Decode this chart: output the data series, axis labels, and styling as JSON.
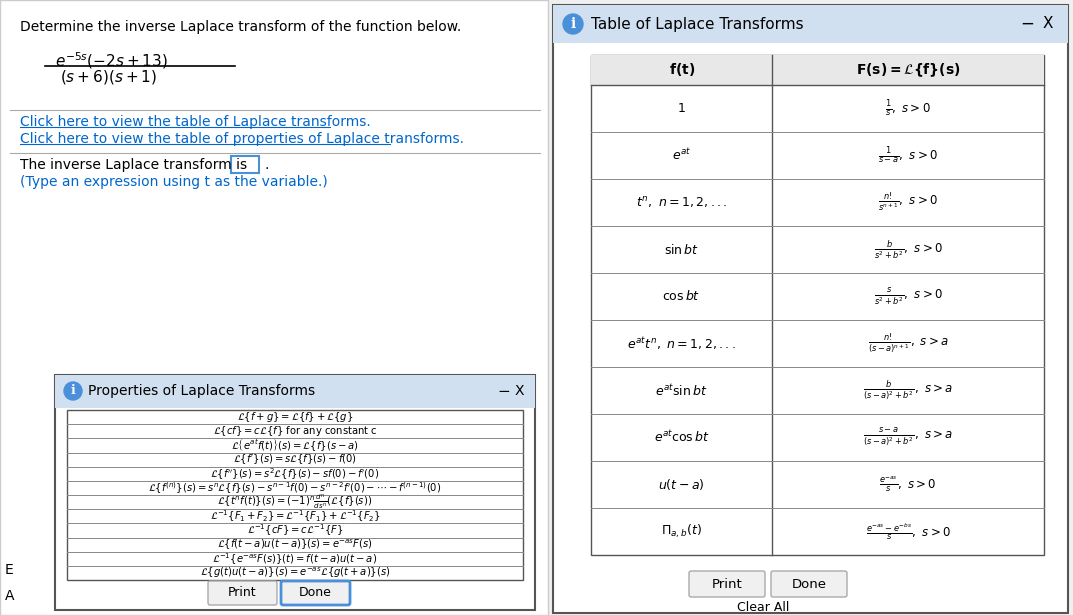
{
  "bg_color": "#f0f0f0",
  "main_bg": "#ffffff",
  "blue_header": "#d0e0f0",
  "blue_link": "#0066cc",
  "blue_info": "#4a90d9",
  "title_text": "Determine the inverse Laplace transform of the function below.",
  "inverse_text": "The inverse Laplace transform is",
  "type_hint": "(Type an expression using t as the variable.)",
  "link1": "Click here to view the table of Laplace transforms.",
  "link2": "Click here to view the table of properties of Laplace transforms.",
  "prop_title": "Properties of Laplace Transforms",
  "laplace_title": "Table of Laplace Transforms",
  "prop_rows": [
    "$\\mathcal{L}\\{f+g\\} = \\mathcal{L}\\{f\\} + \\mathcal{L}\\{g\\}$",
    "$\\mathcal{L}\\{cf\\} = c\\mathcal{L}\\{f\\}$ for any constant c",
    "$\\mathcal{L}\\left\\{e^{at}f(t)\\right\\}(s) = \\mathcal{L}\\{f\\}(s-a)$",
    "$\\mathcal{L}\\{f'\\}(s) = s\\mathcal{L}\\{f\\}(s) - f(0)$",
    "$\\mathcal{L}\\{f''\\}(s) = s^2\\mathcal{L}\\{f\\}(s) - sf(0) - f'(0)$",
    "$\\mathcal{L}\\{f^{(n)}\\}(s) = s^n\\mathcal{L}\\{f\\}(s) - s^{n-1}f(0) - s^{n-2}f'(0) - \\cdots - f^{(n-1)}(0)$",
    "$\\mathcal{L}\\{t^n f(t)\\}(s) = (-1)^n \\frac{d^n}{ds^n}(\\mathcal{L}\\{f\\}(s))$",
    "$\\mathcal{L}^{-1}\\{F_1 + F_2\\} = \\mathcal{L}^{-1}\\{F_1\\} + \\mathcal{L}^{-1}\\{F_2\\}$",
    "$\\mathcal{L}^{-1}\\{cF\\} = c\\mathcal{L}^{-1}\\{F\\}$",
    "$\\mathcal{L}\\{f(t-a)u(t-a)\\}(s) = e^{-as}F(s)$",
    "$\\mathcal{L}^{-1}\\{e^{-as}F(s)\\}(t) = f(t-a)u(t-a)$",
    "$\\mathcal{L}\\{g(t)u(t-a)\\}(s) = e^{-as}\\mathcal{L}\\{g(t+a)\\}(s)$"
  ],
  "lt_rows_ft": [
    "$1$",
    "$e^{at}$",
    "$t^n,\\ n=1,2,...$",
    "$\\sin bt$",
    "$\\cos bt$",
    "$e^{at}t^n,\\ n=1,2,...$",
    "$e^{at}\\sin bt$",
    "$e^{at}\\cos bt$",
    "$u(t-a)$",
    "$\\Pi_{a,b}(t)$"
  ],
  "lt_rows_Fs": [
    "$\\frac{1}{s},\\ s>0$",
    "$\\frac{1}{s-a},\\ s>0$",
    "$\\frac{n!}{s^{n+1}},\\ s>0$",
    "$\\frac{b}{s^2+b^2},\\ s>0$",
    "$\\frac{s}{s^2+b^2},\\ s>0$",
    "$\\frac{n!}{(s-a)^{n+1}},\\ s>a$",
    "$\\frac{b}{(s-a)^2+b^2},\\ s>a$",
    "$\\frac{s-a}{(s-a)^2+b^2},\\ s>a$",
    "$\\frac{e^{-as}}{s},\\ s>0$",
    "$\\frac{e^{-as}-e^{-bs}}{s},\\ s>0$"
  ]
}
